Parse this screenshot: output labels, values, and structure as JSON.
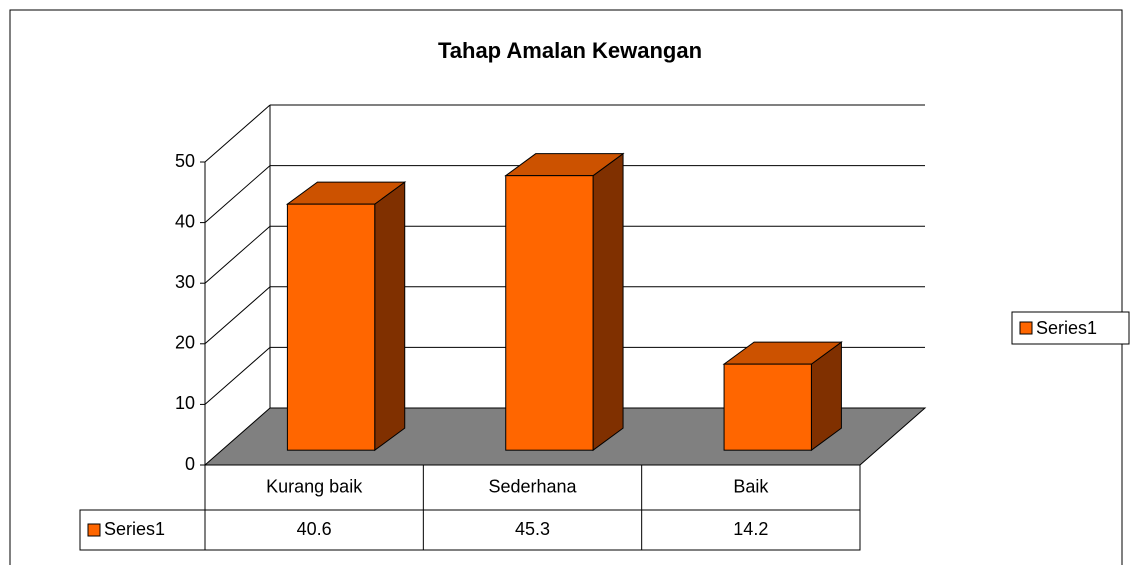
{
  "chart_data": {
    "type": "bar3d",
    "title": "Tahap Amalan Kewangan",
    "categories": [
      "Kurang baik",
      "Sederhana",
      "Baik"
    ],
    "series": [
      {
        "name": "Series1",
        "color": "#ff6600",
        "values": [
          40.6,
          45.3,
          14.2
        ]
      }
    ],
    "ylim": [
      0,
      50
    ],
    "yticks": [
      0,
      10,
      20,
      30,
      40,
      50
    ],
    "grid": true,
    "legend": "right",
    "data_table": true
  }
}
